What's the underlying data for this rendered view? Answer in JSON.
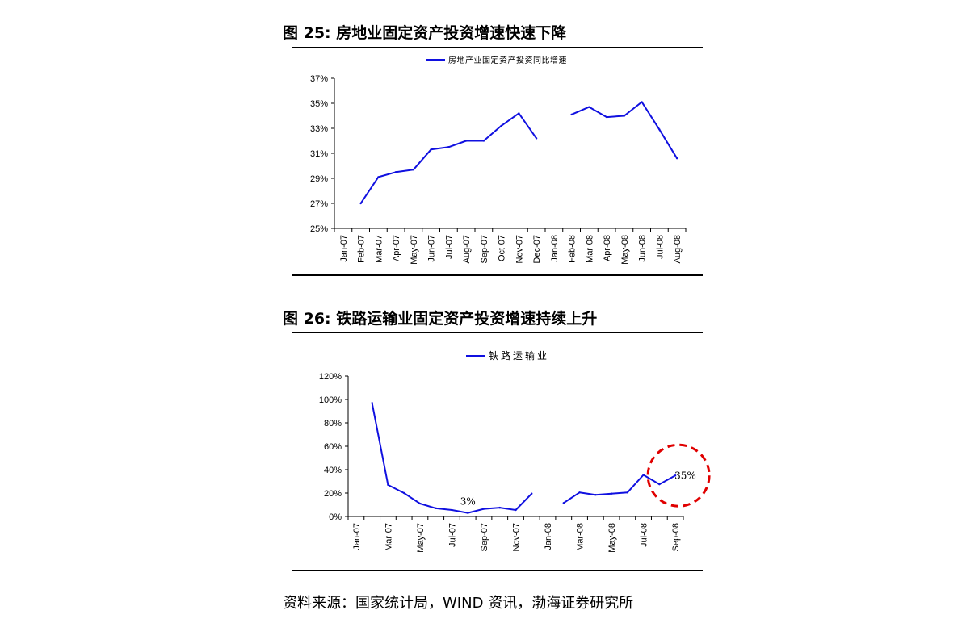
{
  "figures": [
    {
      "title": "图 25:  房地业固定资产投资增速快速下降",
      "chart_data": {
        "type": "line",
        "title": "",
        "xlabel": "",
        "ylabel": "",
        "categories": [
          "Jan-07",
          "Feb-07",
          "Mar-07",
          "Apr-07",
          "May-07",
          "Jun-07",
          "Jul-07",
          "Aug-07",
          "Sep-07",
          "Oct-07",
          "Nov-07",
          "Dec-07",
          "Jan-08",
          "Feb-08",
          "Mar-08",
          "Apr-08",
          "May-08",
          "Jun-08",
          "Jul-08",
          "Aug-08"
        ],
        "series": [
          {
            "name": "房地产业固定资产投资同比增速",
            "values": [
              null,
              27.0,
              29.1,
              29.5,
              29.7,
              31.3,
              31.5,
              32.0,
              32.0,
              33.2,
              34.2,
              32.2,
              null,
              34.1,
              34.7,
              33.9,
              34.0,
              35.1,
              32.9,
              30.6
            ]
          }
        ],
        "ylim": [
          25,
          37
        ],
        "yticks": [
          "25%",
          "27%",
          "29%",
          "31%",
          "33%",
          "35%",
          "37%"
        ],
        "legend": "top-center",
        "color": "#1010e0",
        "grid": false
      }
    },
    {
      "title": "图 26:  铁路运输业固定资产投资增速持续上升",
      "chart_data": {
        "type": "line",
        "title": "",
        "xlabel": "",
        "ylabel": "",
        "categories": [
          "Jan-07",
          "Feb-07",
          "Mar-07",
          "Apr-07",
          "May-07",
          "Jun-07",
          "Jul-07",
          "Aug-07",
          "Sep-07",
          "Oct-07",
          "Nov-07",
          "Dec-07",
          "Jan-08",
          "Feb-08",
          "Mar-08",
          "Apr-08",
          "May-08",
          "Jun-08",
          "Jul-08",
          "Aug-08",
          "Sep-08"
        ],
        "tick_labels": [
          "Jan-07",
          "Mar-07",
          "May-07",
          "Jul-07",
          "Sep-07",
          "Nov-07",
          "Jan-08",
          "Mar-08",
          "May-08",
          "Jul-08",
          "Sep-08"
        ],
        "series": [
          {
            "name": "铁路运输业",
            "values": [
              null,
              97,
              27,
              20,
              11,
              7,
              5.5,
              3,
              6.5,
              7.5,
              5.5,
              19.5,
              null,
              11.5,
              20.5,
              18.5,
              19.5,
              20.5,
              35.5,
              27.5,
              35
            ]
          }
        ],
        "ylim": [
          0,
          120
        ],
        "yticks": [
          "0%",
          "20%",
          "40%",
          "60%",
          "80%",
          "100%",
          "120%"
        ],
        "legend": "top-center",
        "color": "#1010e0",
        "grid": false,
        "annotations": [
          {
            "text": "3%",
            "category": "Aug-07",
            "value": 3
          },
          {
            "text": "35%",
            "category": "Sep-08",
            "value": 35,
            "highlight": "red-dashed-circle"
          }
        ]
      }
    }
  ],
  "source": "资料来源：国家统计局，WIND 资讯，渤海证券研究所"
}
